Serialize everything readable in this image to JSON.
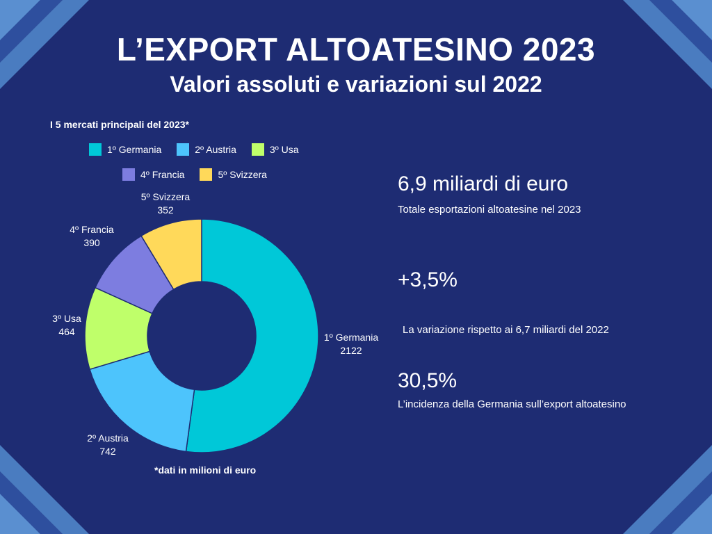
{
  "header": {
    "title": "L’EXPORT ALTOATESINO 2023",
    "subtitle": "Valori assoluti e variazioni sul 2022"
  },
  "chart_data": {
    "type": "pie",
    "variant": "donut",
    "title": "I 5 mercati principali del 2023*",
    "legend_position": "top",
    "footnote": "*dati in milioni di euro",
    "categories": [
      "1º Germania",
      "2º Austria",
      "3º Usa",
      "4º Francia",
      "5º Svizzera"
    ],
    "values": [
      2122,
      742,
      464,
      390,
      352
    ],
    "colors": [
      "#00c8d8",
      "#4dc4fc",
      "#bfff6a",
      "#7d7de0",
      "#ffd95a"
    ]
  },
  "stats": [
    {
      "value": "6,9 miliardi di euro",
      "desc": "Totale esportazioni altoatesine nel 2023"
    },
    {
      "value": "+3,5%",
      "desc": "La variazione rispetto ai 6,7 miliardi del 2022"
    },
    {
      "value": "30,5%",
      "desc": "L’incidenza della Germania sull’export altoatesino"
    }
  ],
  "theme": {
    "background": "#1e2c73",
    "stripe_light": "#5a8fd0",
    "stripe_dark": "#2b4a98"
  }
}
